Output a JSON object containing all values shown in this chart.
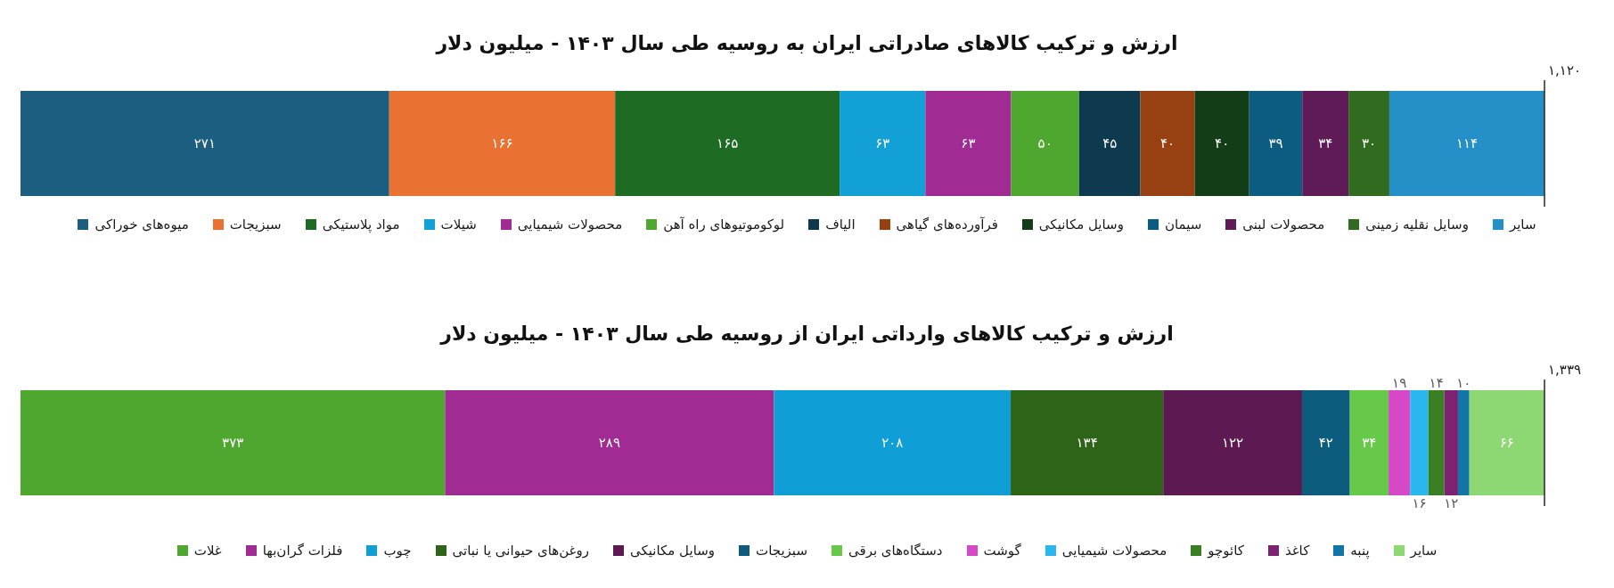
{
  "chart_data": [
    {
      "type": "bar",
      "orientation": "horizontal",
      "stacked": true,
      "title": "ارزش و ترکیب کالاهای صادراتی ایران به روسیه طی سال ۱۴۰۳ - میلیون دلار",
      "categories": [
        null
      ],
      "xlim": [
        0,
        1120
      ],
      "tick_labels": false,
      "legend": "bottom",
      "series": [
        {
          "name": "میوه‌های خوراکی",
          "color": "#1b5e80",
          "values": [
            271
          ],
          "value_labels": [
            "۲۷۱"
          ]
        },
        {
          "name": "سبزیجات",
          "color": "#e97132",
          "values": [
            166
          ],
          "value_labels": [
            "۱۶۶"
          ]
        },
        {
          "name": "مواد پلاستیکی",
          "color": "#1e6b24",
          "values": [
            165
          ],
          "value_labels": [
            "۱۶۵"
          ]
        },
        {
          "name": "شیلات",
          "color": "#12a0d7",
          "values": [
            63
          ],
          "value_labels": [
            "۶۳"
          ]
        },
        {
          "name": "محصولات شیمیایی",
          "color": "#a02b93",
          "values": [
            63
          ],
          "value_labels": [
            "۶۳"
          ]
        },
        {
          "name": "لوکوموتیوهای راه آهن",
          "color": "#4ea72e",
          "values": [
            50
          ],
          "value_labels": [
            "۵۰"
          ]
        },
        {
          "name": "الیاف",
          "color": "#0e3a50",
          "values": [
            45
          ],
          "value_labels": [
            "۴۵"
          ]
        },
        {
          "name": "فرآورده‌های گیاهی",
          "color": "#974012",
          "values": [
            40
          ],
          "value_labels": [
            "۴۰"
          ]
        },
        {
          "name": "وسایل مکانیکی",
          "color": "#123d17",
          "values": [
            40
          ],
          "value_labels": [
            "۴۰"
          ]
        },
        {
          "name": "سیمان",
          "color": "#0b5c80",
          "values": [
            39
          ],
          "value_labels": [
            "۳۹"
          ]
        },
        {
          "name": "محصولات لبنی",
          "color": "#5f1b57",
          "values": [
            34
          ],
          "value_labels": [
            "۳۴"
          ]
        },
        {
          "name": "وسایل نقلیه زمینی",
          "color": "#306b1f",
          "values": [
            30
          ],
          "value_labels": [
            "۳۰"
          ]
        },
        {
          "name": "سایر",
          "color": "#2590c8",
          "values": [
            114
          ],
          "value_labels": [
            "۱۱۴"
          ]
        }
      ],
      "ref_lines": [
        {
          "axis": "x",
          "value": 1120,
          "label": "۱,۱۲۰",
          "color": "#262626"
        }
      ]
    },
    {
      "type": "bar",
      "orientation": "horizontal",
      "stacked": true,
      "title": "ارزش و ترکیب کالاهای وارداتی ایران از روسیه طی سال ۱۴۰۳ - میلیون دلار",
      "categories": [
        null
      ],
      "xlim": [
        0,
        1339
      ],
      "tick_labels": false,
      "legend": "bottom",
      "series": [
        {
          "name": "غلات",
          "color": "#4ea72e",
          "values": [
            373
          ],
          "value_labels": [
            "۳۷۳"
          ]
        },
        {
          "name": "فلزات گران‌بها",
          "color": "#a02b93",
          "values": [
            289
          ],
          "value_labels": [
            "۲۸۹"
          ]
        },
        {
          "name": "چوب",
          "color": "#0f9ed5",
          "values": [
            208
          ],
          "value_labels": [
            "۲۰۸"
          ]
        },
        {
          "name": "روغن‌های حیوانی یا نباتی",
          "color": "#2e6418",
          "values": [
            134
          ],
          "value_labels": [
            "۱۳۴"
          ]
        },
        {
          "name": "وسایل مکانیکی",
          "color": "#5d1a52",
          "values": [
            122
          ],
          "value_labels": [
            "۱۲۲"
          ]
        },
        {
          "name": "سبزیجات",
          "color": "#0b5c7d",
          "values": [
            42
          ],
          "value_labels": [
            "۴۲"
          ]
        },
        {
          "name": "دستگاه‌های برقی",
          "color": "#66c94a",
          "values": [
            34
          ],
          "value_labels": [
            "۳۴"
          ]
        },
        {
          "name": "گوشت",
          "color": "#d548c6",
          "values": [
            19
          ],
          "value_labels": [
            "۱۹"
          ]
        },
        {
          "name": "محصولات شیمیایی",
          "color": "#2ab6ef",
          "values": [
            16
          ],
          "value_labels": [
            "۱۶"
          ]
        },
        {
          "name": "کائوچو",
          "color": "#3b7f24",
          "values": [
            14
          ],
          "value_labels": [
            "۱۴"
          ]
        },
        {
          "name": "کاغذ",
          "color": "#7d2171",
          "values": [
            12
          ],
          "value_labels": [
            "۱۲"
          ]
        },
        {
          "name": "پنبه",
          "color": "#1275a8",
          "values": [
            10
          ],
          "value_labels": [
            "۱۰"
          ]
        },
        {
          "name": "سایر",
          "color": "#8ed873",
          "values": [
            66
          ],
          "value_labels": [
            "۶۶"
          ]
        }
      ],
      "ref_lines": [
        {
          "axis": "x",
          "value": 1339,
          "label": "۱,۳۳۹",
          "color": "#262626"
        }
      ]
    }
  ]
}
